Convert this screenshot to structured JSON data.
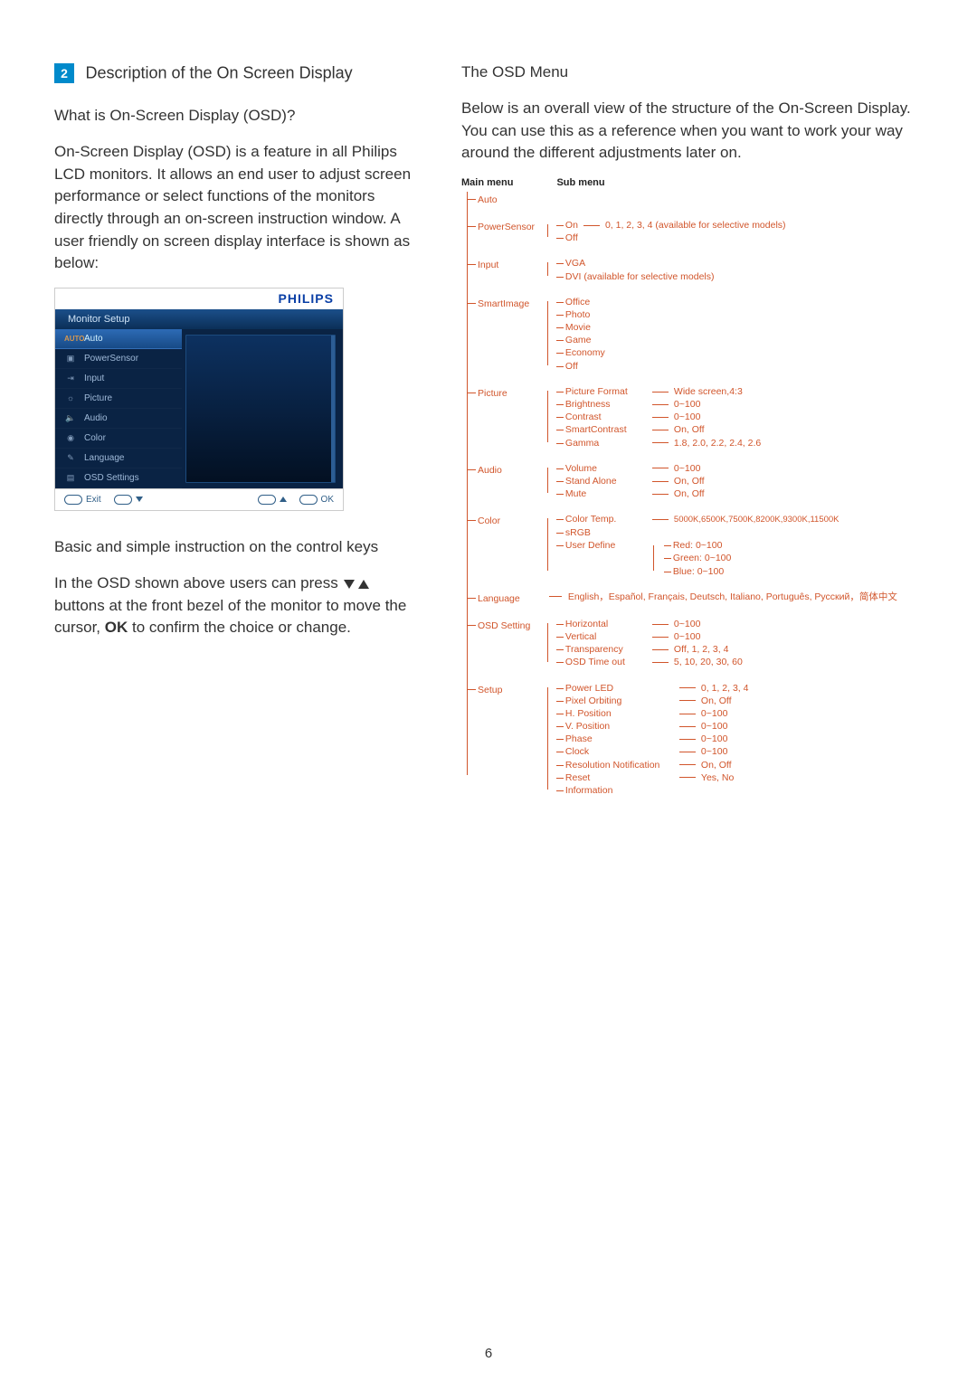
{
  "section": {
    "num": "2",
    "title": "Description of the On Screen Display"
  },
  "left": {
    "h1": "What is On-Screen Display (OSD)?",
    "p1": "On-Screen Display (OSD) is a feature in all Philips LCD monitors. It allows an end user to adjust screen performance or select functions of the monitors directly through an on-screen instruction window. A user friendly on screen display interface is shown as below:",
    "h2": "Basic and simple instruction on the control keys",
    "p2a": "In the OSD shown above users can press ",
    "p2b": " buttons at the front bezel of the monitor to move the cursor, ",
    "ok": "OK",
    "p2c": " to confirm the choice or change."
  },
  "osd": {
    "brand": "PHILIPS",
    "title": "Monitor Setup",
    "items": [
      {
        "icon": "AUTO",
        "label": "Auto"
      },
      {
        "icon": "▣",
        "label": "PowerSensor"
      },
      {
        "icon": "⇥",
        "label": "Input"
      },
      {
        "icon": "☼",
        "label": "Picture"
      },
      {
        "icon": "🔈",
        "label": "Audio"
      },
      {
        "icon": "◉",
        "label": "Color"
      },
      {
        "icon": "✎",
        "label": "Language"
      },
      {
        "icon": "▤",
        "label": "OSD Settings"
      }
    ],
    "footer": {
      "exit": "Exit",
      "ok": "OK"
    }
  },
  "right": {
    "h1": "The OSD Menu",
    "p1": "Below is an overall view of the structure of the On-Screen Display. You can use this as a reference when you want to work your way around the different adjustments later on.",
    "heads": {
      "main": "Main menu",
      "sub": "Sub menu"
    }
  },
  "menu": {
    "auto": "Auto",
    "powersensor": {
      "label": "PowerSensor",
      "on": "On",
      "off": "Off",
      "vals": "0, 1, 2, 3, 4 (available for selective models)"
    },
    "input": {
      "label": "Input",
      "vga": "VGA",
      "dvi": "DVI (available for selective models)"
    },
    "smartimage": {
      "label": "SmartImage",
      "office": "Office",
      "photo": "Photo",
      "movie": "Movie",
      "game": "Game",
      "economy": "Economy",
      "off": "Off"
    },
    "picture": {
      "label": "Picture",
      "pf": "Picture Format",
      "pf_v": "Wide screen,4:3",
      "br": "Brightness",
      "br_v": "0~100",
      "co": "Contrast",
      "co_v": "0~100",
      "sc": "SmartContrast",
      "sc_v": "On, Off",
      "ga": "Gamma",
      "ga_v": "1.8, 2.0, 2.2, 2.4, 2.6"
    },
    "audio": {
      "label": "Audio",
      "vol": "Volume",
      "vol_v": "0~100",
      "sa": "Stand Alone",
      "sa_v": "On, Off",
      "mu": "Mute",
      "mu_v": "On, Off"
    },
    "color": {
      "label": "Color",
      "ct": "Color Temp.",
      "ct_v": "5000K,6500K,7500K,8200K,9300K,11500K",
      "srgb": "sRGB",
      "ud": "User Define",
      "r": "Red: 0~100",
      "g": "Green: 0~100",
      "b": "Blue: 0~100"
    },
    "language": {
      "label": "Language",
      "v1": "English，Español, Français, Deutsch, Italiano,",
      "v2": "Português, Русский，简体中文"
    },
    "osdsetting": {
      "label": "OSD Setting",
      "h": "Horizontal",
      "h_v": "0~100",
      "v": "Vertical",
      "v_v": "0~100",
      "t": "Transparency",
      "t_v": "Off, 1, 2, 3, 4",
      "to": "OSD Time out",
      "to_v": "5, 10, 20, 30, 60"
    },
    "setup": {
      "label": "Setup",
      "pl": "Power LED",
      "pl_v": "0, 1, 2, 3, 4",
      "po": "Pixel Orbiting",
      "po_v": "On, Off",
      "hp": "H. Position",
      "hp_v": "0~100",
      "vp": "V. Position",
      "vp_v": "0~100",
      "ph": "Phase",
      "ph_v": "0~100",
      "ck": "Clock",
      "ck_v": "0~100",
      "rn": "Resolution Notification",
      "rn_v": "On, Off",
      "rs": "Reset",
      "rs_v": "Yes, No",
      "info": "Information"
    }
  },
  "page": "6"
}
